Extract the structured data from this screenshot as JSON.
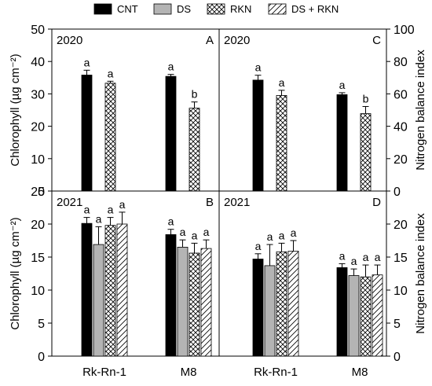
{
  "legend": {
    "items": [
      {
        "label": "CNT",
        "fill": "solid-black"
      },
      {
        "label": "DS",
        "fill": "solid-gray"
      },
      {
        "label": "RKN",
        "fill": "crosshatch"
      },
      {
        "label": "DS + RKN",
        "fill": "diagonal"
      }
    ]
  },
  "colors": {
    "CNT": "#000000",
    "DS": "#b4b4b4",
    "RKN": "#ffffff",
    "DS_RKN": "#ffffff"
  },
  "chart_data": [
    {
      "panel": "A",
      "year": "2020",
      "type": "bar",
      "ylabel": "Chlorophyll (µg cm⁻²)",
      "yaxis_side": "left",
      "ylim": [
        0,
        50
      ],
      "yticks": [
        0,
        10,
        20,
        30,
        40,
        50
      ],
      "categories": [
        "Rk-Rn-1",
        "M8"
      ],
      "series": [
        {
          "name": "CNT",
          "values": [
            35.8,
            35.4
          ],
          "errors": [
            1.5,
            0.6
          ],
          "letters": [
            "a",
            "a"
          ]
        },
        {
          "name": "RKN",
          "values": [
            33.3,
            25.6
          ],
          "errors": [
            0.6,
            1.9
          ],
          "letters": [
            "a",
            "b"
          ]
        }
      ]
    },
    {
      "panel": "C",
      "year": "2020",
      "type": "bar",
      "ylabel": "Nitrogen balance index",
      "yaxis_side": "right",
      "ylim": [
        0,
        100
      ],
      "yticks": [
        0,
        20,
        40,
        60,
        80,
        100
      ],
      "categories": [
        "Rk-Rn-1",
        "M8"
      ],
      "series": [
        {
          "name": "CNT",
          "values": [
            68.5,
            59.5
          ],
          "errors": [
            3.0,
            1.2
          ],
          "letters": [
            "a",
            "a"
          ]
        },
        {
          "name": "RKN",
          "values": [
            59.0,
            47.8
          ],
          "errors": [
            3.2,
            4.4
          ],
          "letters": [
            "a",
            "b"
          ]
        }
      ]
    },
    {
      "panel": "B",
      "year": "2021",
      "type": "bar",
      "ylabel": "Chlorophyll (µg cm⁻²)",
      "yaxis_side": "left",
      "ylim": [
        0,
        25
      ],
      "yticks": [
        0,
        5,
        10,
        15,
        20,
        25
      ],
      "categories": [
        "Rk-Rn-1",
        "M8"
      ],
      "series": [
        {
          "name": "CNT",
          "values": [
            20.1,
            18.4
          ],
          "errors": [
            0.9,
            0.8
          ],
          "letters": [
            "a",
            "a"
          ]
        },
        {
          "name": "DS",
          "values": [
            16.9,
            16.5
          ],
          "errors": [
            2.7,
            1.1
          ],
          "letters": [
            "a",
            "a"
          ]
        },
        {
          "name": "RKN",
          "values": [
            19.8,
            15.6
          ],
          "errors": [
            1.2,
            1.5
          ],
          "letters": [
            "a",
            "a"
          ]
        },
        {
          "name": "DS + RKN",
          "values": [
            20.0,
            16.3
          ],
          "errors": [
            1.8,
            1.3
          ],
          "letters": [
            "a",
            "a"
          ]
        }
      ]
    },
    {
      "panel": "D",
      "year": "2021",
      "type": "bar",
      "ylabel": "Nitrogen balance index",
      "yaxis_side": "right",
      "ylim": [
        0,
        25
      ],
      "yticks": [
        0,
        5,
        10,
        15,
        20
      ],
      "categories": [
        "Rk-Rn-1",
        "M8"
      ],
      "series": [
        {
          "name": "CNT",
          "values": [
            14.7,
            13.4
          ],
          "errors": [
            0.8,
            0.6
          ],
          "letters": [
            "a",
            "a"
          ]
        },
        {
          "name": "DS",
          "values": [
            13.7,
            12.2
          ],
          "errors": [
            3.2,
            1.0
          ],
          "letters": [
            "a",
            "a"
          ]
        },
        {
          "name": "RKN",
          "values": [
            15.8,
            12.0
          ],
          "errors": [
            1.3,
            1.8
          ],
          "letters": [
            "a",
            "a"
          ]
        },
        {
          "name": "DS + RKN",
          "values": [
            15.9,
            12.3
          ],
          "errors": [
            1.6,
            1.5
          ],
          "letters": [
            "a",
            "a"
          ]
        }
      ]
    }
  ]
}
